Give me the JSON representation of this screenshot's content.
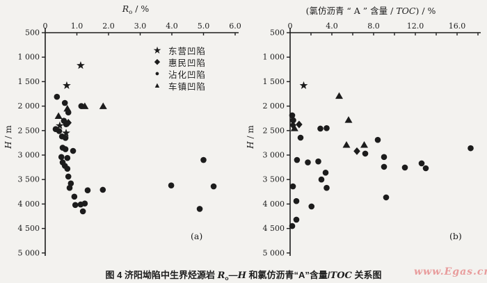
{
  "colors": {
    "ink": "#1c1c1c",
    "paper": "#f3f2ef",
    "watermark_pink": "#e89c9c"
  },
  "watermark": {
    "text": "www.Egas.cn"
  },
  "caption": {
    "parts": [
      {
        "text": "图 4  济阳坳陷中生界烃源岩 ",
        "style": "cjk"
      },
      {
        "text": "R",
        "style": "italic"
      },
      {
        "text": "o",
        "style": "sub"
      },
      {
        "text": "—",
        "style": "cjk"
      },
      {
        "text": "H",
        "style": "italic"
      },
      {
        "text": " 和氯仿沥青“A”含量/",
        "style": "cjk"
      },
      {
        "text": "TOC",
        "style": "italic"
      },
      {
        "text": " 关系图",
        "style": "cjk"
      }
    ]
  },
  "legend": {
    "items": [
      {
        "marker": "star",
        "glyph": "★",
        "label": "东营凹陷"
      },
      {
        "marker": "diamond",
        "glyph": "◆",
        "label": "惠民凹陷"
      },
      {
        "marker": "circle",
        "glyph": "●",
        "label": "沾化凹陷"
      },
      {
        "marker": "triangle",
        "glyph": "▲",
        "label": "车镇凹陷"
      }
    ]
  },
  "chart_data": [
    {
      "id": "a",
      "type": "scatter",
      "panel_label": "(a)",
      "xlabel_parts": [
        {
          "text": "R",
          "style": "italic"
        },
        {
          "text": "o",
          "style": "sub"
        },
        {
          "text": " / %",
          "style": "normal"
        }
      ],
      "ylabel_parts": [
        {
          "text": "H",
          "style": "italic"
        },
        {
          "text": " / m",
          "style": "normal"
        }
      ],
      "xlim": [
        0,
        6.1
      ],
      "ylim": [
        500,
        5000
      ],
      "x_tick_labels": [
        {
          "v": 0,
          "label": "0"
        },
        {
          "v": 1,
          "label": "1.0"
        },
        {
          "v": 2,
          "label": "2.0"
        },
        {
          "v": 3,
          "label": "3.0"
        },
        {
          "v": 4,
          "label": "4.0"
        },
        {
          "v": 5,
          "label": "5.0"
        },
        {
          "v": 6,
          "label": "6.0"
        }
      ],
      "x_major_ticks": [
        1,
        2,
        3,
        4,
        5,
        6
      ],
      "x_minor_ticks": [],
      "y_ticks": [
        {
          "v": 500,
          "label": "500"
        },
        {
          "v": 1000,
          "label": "1 000"
        },
        {
          "v": 1500,
          "label": "1 500"
        },
        {
          "v": 2000,
          "label": "2 000"
        },
        {
          "v": 2500,
          "label": "2 500"
        },
        {
          "v": 3000,
          "label": "3 000"
        },
        {
          "v": 3500,
          "label": "3 500"
        },
        {
          "v": 4000,
          "label": "4 000"
        },
        {
          "v": 4500,
          "label": "4 500"
        },
        {
          "v": 5000,
          "label": "5 000"
        }
      ],
      "series": [
        {
          "name": "东营凹陷",
          "marker": "star",
          "points": [
            [
              1.12,
              1170
            ],
            [
              0.68,
              1580
            ],
            [
              0.46,
              2400
            ],
            [
              0.66,
              2550
            ]
          ]
        },
        {
          "name": "惠民凹陷",
          "marker": "diamond",
          "points": [
            [
              0.73,
              2340
            ]
          ]
        },
        {
          "name": "沾化凹陷",
          "marker": "circle",
          "points": [
            [
              0.37,
              1810
            ],
            [
              0.62,
              1935
            ],
            [
              1.14,
              2000
            ],
            [
              0.73,
              2130
            ],
            [
              0.59,
              2300
            ],
            [
              0.66,
              2370
            ],
            [
              0.33,
              2470
            ],
            [
              0.44,
              2510
            ],
            [
              0.53,
              2620
            ],
            [
              0.64,
              2650
            ],
            [
              0.55,
              2850
            ],
            [
              0.64,
              2880
            ],
            [
              0.88,
              2915
            ],
            [
              0.51,
              3040
            ],
            [
              0.7,
              3060
            ],
            [
              5.0,
              3100
            ],
            [
              0.55,
              3150
            ],
            [
              0.62,
              3220
            ],
            [
              0.7,
              3280
            ],
            [
              0.73,
              3440
            ],
            [
              0.81,
              3580
            ],
            [
              0.77,
              3670
            ],
            [
              1.34,
              3720
            ],
            [
              1.82,
              3710
            ],
            [
              3.98,
              3620
            ],
            [
              5.32,
              3640
            ],
            [
              0.92,
              3850
            ],
            [
              0.95,
              4020
            ],
            [
              1.12,
              4010
            ],
            [
              1.25,
              3990
            ],
            [
              4.88,
              4100
            ],
            [
              1.19,
              4150
            ]
          ]
        },
        {
          "name": "车镇凹陷",
          "marker": "triangle",
          "points": [
            [
              0.7,
              2050
            ],
            [
              1.25,
              2000
            ],
            [
              1.83,
              2000
            ],
            [
              0.42,
              2200
            ]
          ]
        }
      ]
    },
    {
      "id": "b",
      "type": "scatter",
      "panel_label": "(b)",
      "xlabel_parts": [
        {
          "text": "(氯仿沥青 “ A ” 含量 / ",
          "style": "normal"
        },
        {
          "text": "TOC",
          "style": "italic"
        },
        {
          "text": ") / %",
          "style": "normal"
        }
      ],
      "ylabel_parts": [
        {
          "text": "H",
          "style": "italic"
        },
        {
          "text": " / m",
          "style": "normal"
        }
      ],
      "xlim": [
        0,
        18
      ],
      "ylim": [
        500,
        5000
      ],
      "x_tick_labels": [
        {
          "v": 0,
          "label": "0"
        },
        {
          "v": 4,
          "label": "4.0"
        },
        {
          "v": 8,
          "label": "8.0"
        },
        {
          "v": 12,
          "label": "12.0"
        },
        {
          "v": 16,
          "label": "16.0"
        }
      ],
      "x_major_ticks": [
        4,
        8,
        12,
        16
      ],
      "x_minor_ticks": [
        2,
        6,
        10,
        14,
        18
      ],
      "y_ticks": [
        {
          "v": 500,
          "label": "500"
        },
        {
          "v": 1000,
          "label": "1 000"
        },
        {
          "v": 1500,
          "label": "1 500"
        },
        {
          "v": 2000,
          "label": "2 000"
        },
        {
          "v": 2500,
          "label": "2 500"
        },
        {
          "v": 3000,
          "label": "3 000"
        },
        {
          "v": 3500,
          "label": "3 500"
        },
        {
          "v": 4000,
          "label": "4 000"
        },
        {
          "v": 4500,
          "label": "4 500"
        },
        {
          "v": 5000,
          "label": "5 000"
        }
      ],
      "series": [
        {
          "name": "东营凹陷",
          "marker": "star",
          "points": [
            [
              1.3,
              1580
            ]
          ]
        },
        {
          "name": "惠民凹陷",
          "marker": "diamond",
          "points": [
            [
              0.27,
              2390
            ],
            [
              0.86,
              2375
            ],
            [
              6.4,
              2920
            ]
          ]
        },
        {
          "name": "沾化凹陷",
          "marker": "circle",
          "points": [
            [
              0.2,
              2190
            ],
            [
              0.3,
              2290
            ],
            [
              2.9,
              2460
            ],
            [
              3.5,
              2450
            ],
            [
              1.0,
              2645
            ],
            [
              8.4,
              2690
            ],
            [
              17.3,
              2860
            ],
            [
              7.2,
              2970
            ],
            [
              9.0,
              3040
            ],
            [
              0.66,
              3100
            ],
            [
              2.7,
              3130
            ],
            [
              1.7,
              3150
            ],
            [
              12.6,
              3170
            ],
            [
              11.0,
              3255
            ],
            [
              9.0,
              3240
            ],
            [
              13.0,
              3270
            ],
            [
              3.4,
              3360
            ],
            [
              3.0,
              3500
            ],
            [
              3.5,
              3670
            ],
            [
              0.27,
              3640
            ],
            [
              9.2,
              3865
            ],
            [
              0.6,
              3940
            ],
            [
              2.05,
              4050
            ],
            [
              0.6,
              4320
            ],
            [
              0.2,
              4450
            ]
          ]
        },
        {
          "name": "车镇凹陷",
          "marker": "triangle",
          "points": [
            [
              4.7,
              1790
            ],
            [
              5.6,
              2280
            ],
            [
              0.42,
              2450
            ],
            [
              5.4,
              2790
            ],
            [
              7.1,
              2790
            ]
          ]
        }
      ]
    }
  ]
}
